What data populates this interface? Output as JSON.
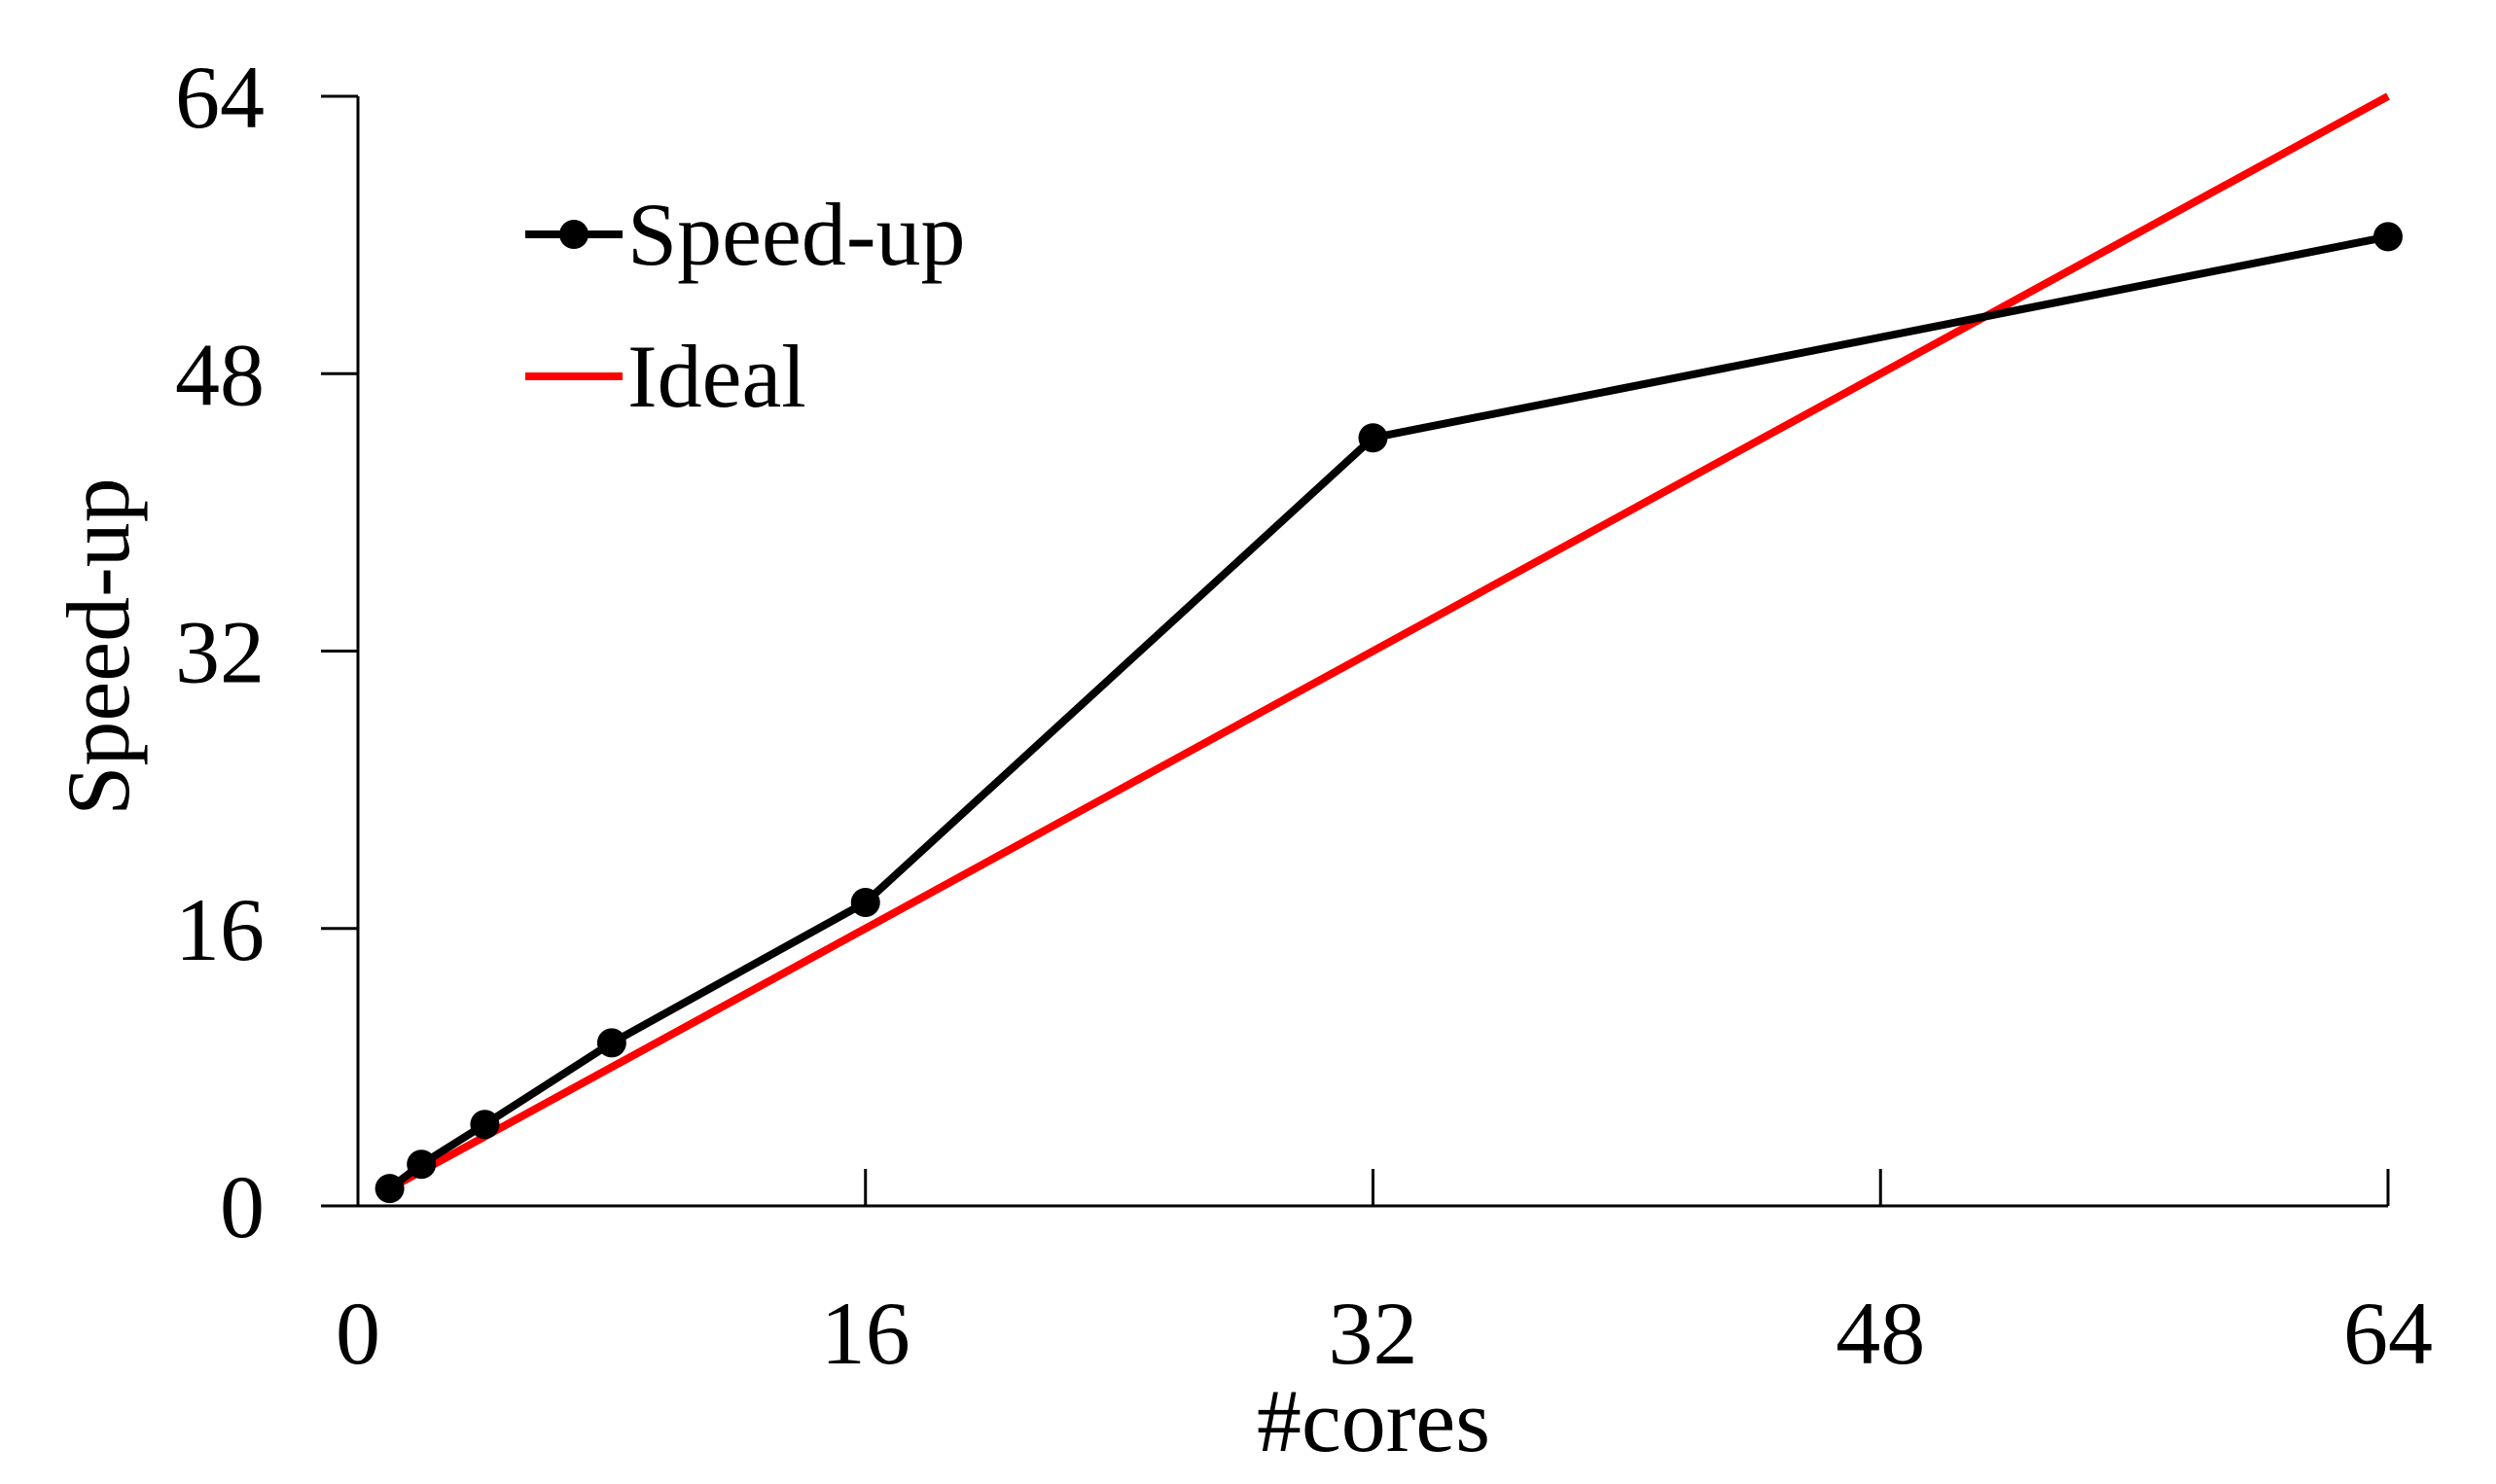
{
  "chart_data": {
    "type": "line",
    "xlabel": "#cores",
    "ylabel": "Speed-up",
    "xlim": [
      0,
      64
    ],
    "ylim": [
      0,
      64
    ],
    "x_ticks": [
      0,
      16,
      32,
      48,
      64
    ],
    "y_ticks": [
      0,
      16,
      32,
      48,
      64
    ],
    "x_tick_labels": [
      "0",
      "16",
      "32",
      "48",
      "64"
    ],
    "y_tick_labels": [
      "0",
      "16",
      "32",
      "48",
      "64"
    ],
    "grid": false,
    "legend_position": "top-left",
    "series": [
      {
        "name": "Speed-up",
        "color": "#000000",
        "marker": "circle",
        "x": [
          1,
          2,
          4,
          8,
          16,
          32,
          64
        ],
        "y": [
          1,
          2.4,
          4.7,
          9.4,
          17.5,
          44.3,
          55.9
        ]
      },
      {
        "name": "Ideal",
        "color": "#ff0000",
        "marker": "none",
        "x": [
          1,
          64
        ],
        "y": [
          1,
          64
        ]
      }
    ]
  }
}
